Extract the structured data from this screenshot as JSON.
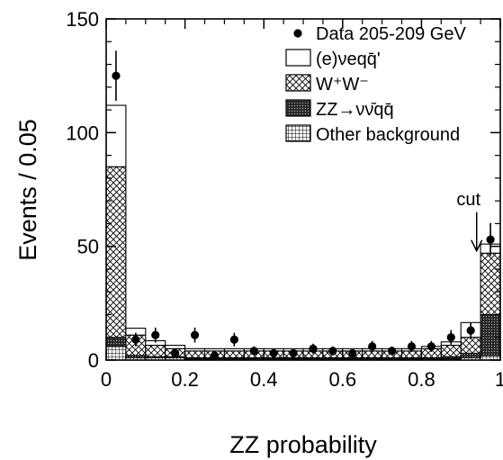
{
  "chart_data": {
    "type": "bar",
    "subtype": "stacked-histogram",
    "xlabel": "ZZ probability",
    "ylabel": "Events / 0.05",
    "xlim": [
      0,
      1
    ],
    "ylim": [
      0,
      150
    ],
    "x_ticks": [
      "0",
      "0.2",
      "0.4",
      "0.6",
      "0.8",
      "1"
    ],
    "y_ticks": [
      "0",
      "50",
      "100",
      "150"
    ],
    "bin_width": 0.05,
    "bin_edges": [
      0,
      0.05,
      0.1,
      0.15,
      0.2,
      0.25,
      0.3,
      0.35,
      0.4,
      0.45,
      0.5,
      0.55,
      0.6,
      0.65,
      0.7,
      0.75,
      0.8,
      0.85,
      0.9,
      0.95,
      1.0
    ],
    "series": [
      {
        "name": "Other background",
        "pattern": "grid",
        "values": [
          6,
          1,
          1,
          1,
          0.5,
          0.5,
          0.5,
          0.5,
          0.5,
          0.5,
          0.5,
          0.5,
          0.5,
          0.5,
          0.5,
          0.5,
          0.5,
          0.5,
          1,
          2
        ]
      },
      {
        "name": "ZZ→νν̄qq̄",
        "pattern": "dark",
        "values": [
          4,
          1,
          0.5,
          0.5,
          0.5,
          0.5,
          0.5,
          0.5,
          0.5,
          0.5,
          0.5,
          0.5,
          0.5,
          0.5,
          0.5,
          0.5,
          0.5,
          1,
          2,
          18
        ]
      },
      {
        "name": "W⁺W⁻",
        "pattern": "crosshatch",
        "values": [
          75,
          9,
          5,
          3.5,
          3,
          3,
          3,
          3,
          3,
          3,
          3,
          3,
          3,
          3,
          3,
          3,
          4,
          5,
          7,
          27
        ]
      },
      {
        "name": "(e)νeqq̄'",
        "pattern": "open",
        "values": [
          27,
          3,
          2,
          1.5,
          1,
          1,
          1,
          1,
          1,
          1,
          1,
          1,
          1,
          1,
          1,
          1,
          1,
          1.5,
          6.5,
          4
        ]
      }
    ],
    "data_points": {
      "name": "Data 205-209 GeV",
      "x": [
        0.025,
        0.075,
        0.125,
        0.175,
        0.225,
        0.275,
        0.325,
        0.375,
        0.425,
        0.475,
        0.525,
        0.575,
        0.625,
        0.675,
        0.725,
        0.775,
        0.825,
        0.875,
        0.925,
        0.975
      ],
      "y": [
        125,
        9,
        11,
        3,
        11,
        2,
        9,
        4,
        3,
        3,
        5,
        4,
        3,
        6,
        4,
        6,
        6,
        10,
        13,
        53
      ],
      "err": [
        11,
        3,
        3.3,
        1.7,
        3.3,
        1.4,
        3,
        2,
        1.7,
        1.7,
        2.2,
        2,
        1.7,
        2.4,
        2,
        2.4,
        2.4,
        3.2,
        3.6,
        7.3
      ]
    },
    "annotations": [
      {
        "text": "cut",
        "x": 0.94,
        "arrow_from_y": 65,
        "arrow_to_y": 48
      }
    ],
    "legend": {
      "placement": "top-right",
      "entries": [
        {
          "label": "Data 205-209 GeV",
          "symbol": "marker"
        },
        {
          "label": "(e)νeqq̄'",
          "symbol": "open"
        },
        {
          "label": "W⁺W⁻",
          "symbol": "crosshatch"
        },
        {
          "label": "ZZ→νν̄qq̄",
          "symbol": "dark"
        },
        {
          "label": "Other background",
          "symbol": "grid"
        }
      ]
    }
  }
}
